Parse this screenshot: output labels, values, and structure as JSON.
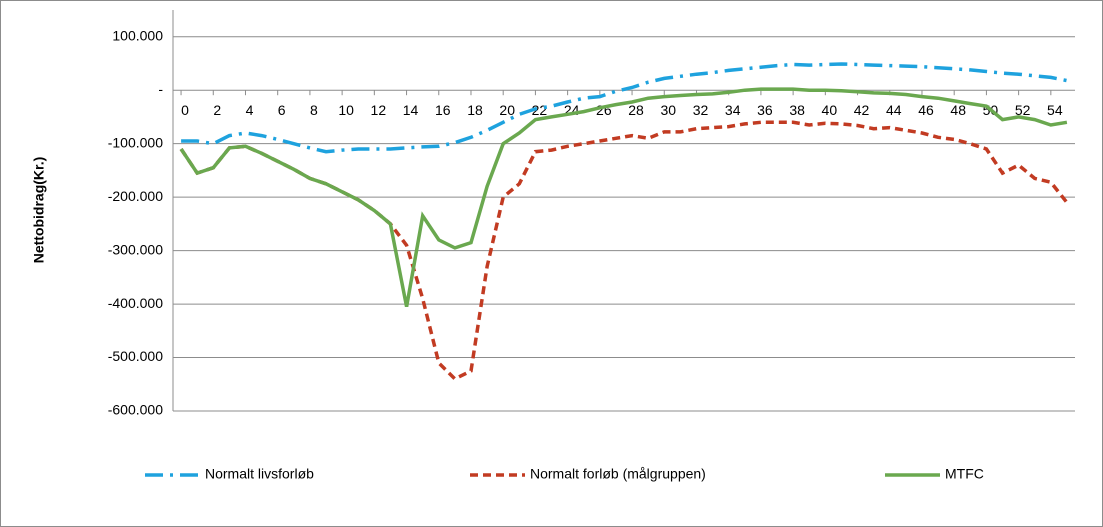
{
  "chart_data": {
    "type": "line",
    "y_label": "Nettobidrag(Kr.)",
    "x": [
      0,
      1,
      2,
      3,
      4,
      5,
      6,
      7,
      8,
      9,
      10,
      11,
      12,
      13,
      14,
      15,
      16,
      17,
      18,
      19,
      20,
      21,
      22,
      23,
      24,
      25,
      26,
      27,
      28,
      29,
      30,
      31,
      32,
      33,
      34,
      35,
      36,
      37,
      38,
      39,
      40,
      41,
      42,
      43,
      44,
      45,
      46,
      47,
      48,
      49,
      50,
      51,
      52,
      53,
      54,
      55
    ],
    "xlim": [
      -0.5,
      55.5
    ],
    "xticks": [
      0,
      2,
      4,
      6,
      8,
      10,
      12,
      14,
      16,
      18,
      20,
      22,
      24,
      26,
      28,
      30,
      32,
      34,
      36,
      38,
      40,
      42,
      44,
      46,
      48,
      50,
      52,
      54
    ],
    "ylim": [
      -600000,
      150000
    ],
    "yticks": [
      {
        "value": 100000,
        "label": "100.000"
      },
      {
        "value": 0,
        "label": "-"
      },
      {
        "value": -100000,
        "label": "-100.000"
      },
      {
        "value": -200000,
        "label": "-200.000"
      },
      {
        "value": -300000,
        "label": "-300.000"
      },
      {
        "value": -400000,
        "label": "-400.000"
      },
      {
        "value": -500000,
        "label": "-500.000"
      },
      {
        "value": -600000,
        "label": "-600.000"
      }
    ],
    "grid": true,
    "legend": "bottom",
    "series": [
      {
        "name": "Normalt livsforløb",
        "color": "#1ea2de",
        "style": "dashdot",
        "values": [
          -95000,
          -95000,
          -100000,
          -85000,
          -80000,
          -85000,
          -92000,
          -100000,
          -108000,
          -115000,
          -112000,
          -110000,
          -110000,
          -110000,
          -108000,
          -106000,
          -105000,
          -98000,
          -88000,
          -75000,
          -60000,
          -45000,
          -35000,
          -30000,
          -22000,
          -15000,
          -12000,
          -2000,
          5000,
          15000,
          22000,
          26000,
          30000,
          33000,
          37000,
          40000,
          43000,
          46000,
          48000,
          47000,
          48000,
          49000,
          48000,
          47000,
          46000,
          45000,
          44000,
          42000,
          40000,
          38000,
          35000,
          32000,
          30000,
          27000,
          24000,
          18000
        ]
      },
      {
        "name": "Normalt forløb (målgruppen)",
        "color": "#c23b22",
        "style": "dashed",
        "values": [
          -110000,
          -155000,
          -145000,
          -108000,
          -105000,
          -118000,
          -133000,
          -148000,
          -165000,
          -175000,
          -190000,
          -205000,
          -225000,
          -250000,
          -290000,
          -390000,
          -510000,
          -540000,
          -525000,
          -330000,
          -200000,
          -175000,
          -115000,
          -112000,
          -105000,
          -100000,
          -95000,
          -90000,
          -85000,
          -90000,
          -78000,
          -78000,
          -72000,
          -70000,
          -68000,
          -63000,
          -60000,
          -60000,
          -60000,
          -65000,
          -62000,
          -63000,
          -66000,
          -72000,
          -70000,
          -75000,
          -80000,
          -88000,
          -92000,
          -100000,
          -110000,
          -155000,
          -140000,
          -165000,
          -172000,
          -210000
        ]
      },
      {
        "name": "MTFC",
        "color": "#6aa84f",
        "style": "solid",
        "values": [
          -110000,
          -155000,
          -145000,
          -108000,
          -105000,
          -118000,
          -133000,
          -148000,
          -165000,
          -175000,
          -190000,
          -205000,
          -225000,
          -250000,
          -405000,
          -235000,
          -280000,
          -295000,
          -285000,
          -180000,
          -100000,
          -80000,
          -55000,
          -50000,
          -45000,
          -40000,
          -33000,
          -27000,
          -22000,
          -15000,
          -12000,
          -10000,
          -8000,
          -7000,
          -4000,
          0,
          2000,
          2000,
          2000,
          0,
          0,
          -1000,
          -3000,
          -5000,
          -6000,
          -8000,
          -12000,
          -15000,
          -20000,
          -25000,
          -30000,
          -55000,
          -50000,
          -55000,
          -65000,
          -60000
        ]
      }
    ]
  }
}
